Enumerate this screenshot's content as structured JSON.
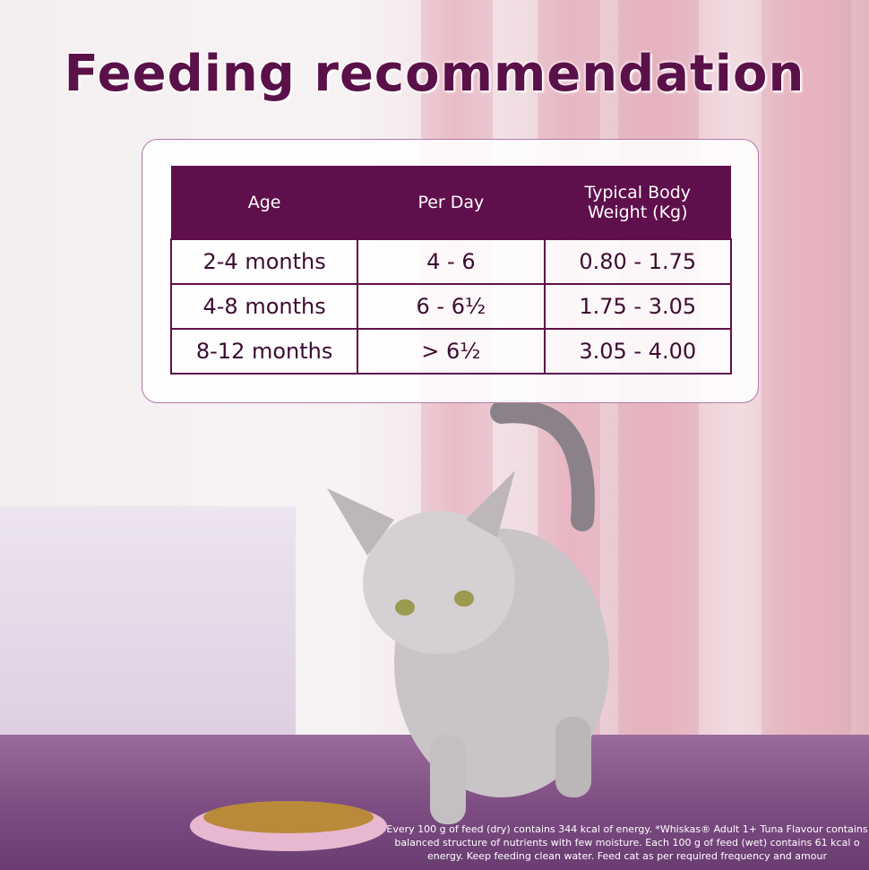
{
  "header": {
    "title": "Feeding recommendation"
  },
  "table": {
    "columns": [
      "Age",
      "Per Day",
      "Typical Body Weight (Kg)"
    ],
    "rows": [
      [
        "2-4 months",
        "4 - 6",
        "0.80 - 1.75"
      ],
      [
        "4-8 months",
        "6 - 6½",
        "1.75 - 3.05"
      ],
      [
        "8-12 months",
        "> 6½",
        "3.05 - 4.00"
      ]
    ]
  },
  "footer": {
    "lines": [
      "Every 100 g of feed (dry) contains 344 kcal of energy. *Whiskas® Adult 1+ Tuna Flavour contains",
      "balanced structure of nutrients with few moisture. Each 100 g of feed (wet) contains 61 kcal o",
      "energy. Keep feeding clean water. Feed cat as per required frequency and amour"
    ]
  }
}
